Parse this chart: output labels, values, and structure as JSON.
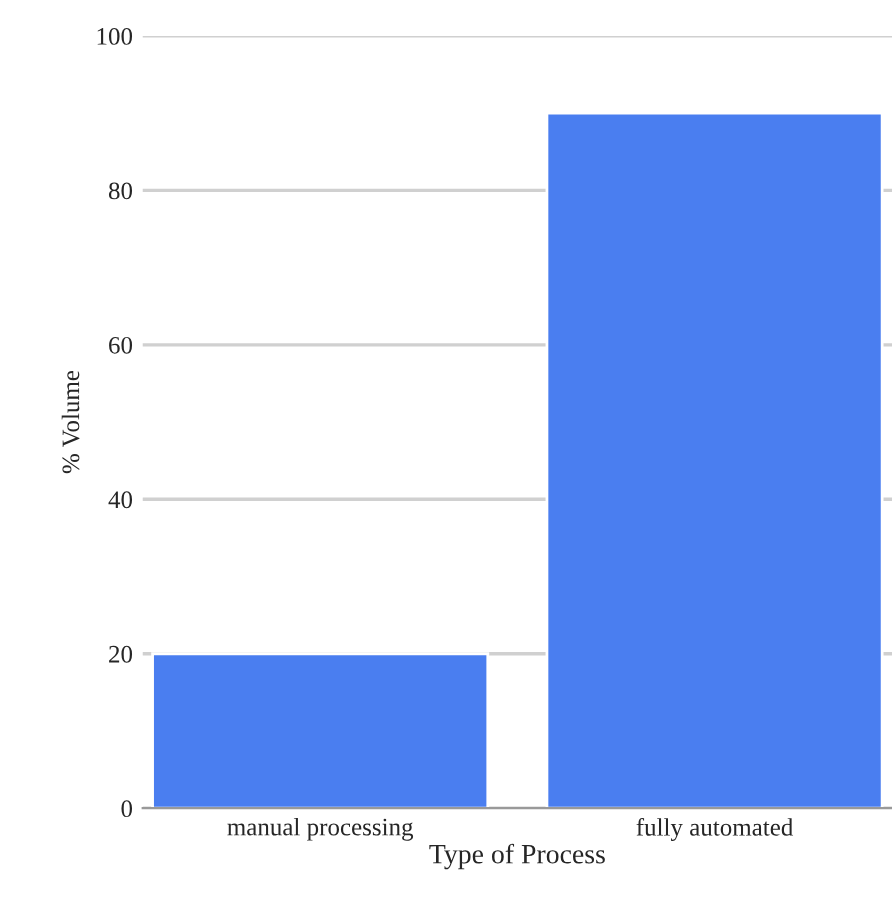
{
  "chart_data": {
    "type": "bar",
    "xlabel": "Type of Process",
    "ylabel": "% Volume",
    "categories": [
      "manual processing",
      "fully automated"
    ],
    "values": [
      20,
      90
    ],
    "color": "#4a7ef0",
    "ylim": [
      0,
      100
    ],
    "yticks": [
      0,
      20,
      40,
      60,
      80,
      100
    ],
    "grid": "y"
  }
}
